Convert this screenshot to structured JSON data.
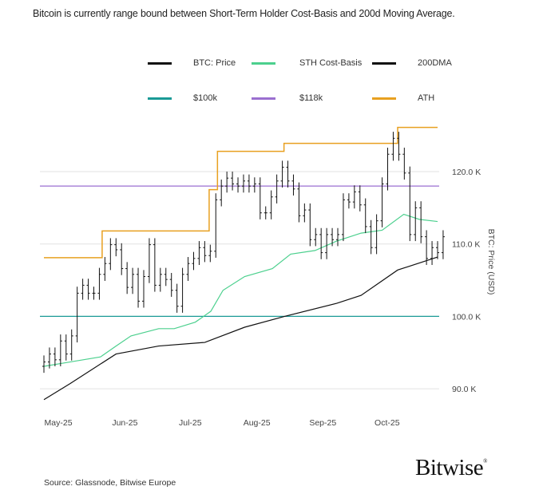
{
  "chart_data": {
    "type": "line",
    "title": "Bitcoin is currently range bound between Short-Term Holder Cost-Basis and 200d Moving Average.",
    "ylabel": "BTC: Price (USD)",
    "xlabel": "",
    "ylim": [
      86,
      128
    ],
    "y_ticks": [
      {
        "value": 90,
        "label": "90.0 K"
      },
      {
        "value": 100,
        "label": "100.0 K"
      },
      {
        "value": 110,
        "label": "110.0 K"
      },
      {
        "value": 120,
        "label": "120.0 K"
      }
    ],
    "x_ticks": [
      {
        "index": 2.6,
        "label": "May-25"
      },
      {
        "index": 14.6,
        "label": "Jun-25"
      },
      {
        "index": 26.4,
        "label": "Jul-25"
      },
      {
        "index": 38.4,
        "label": "Aug-25"
      },
      {
        "index": 50.3,
        "label": "Sep-25"
      },
      {
        "index": 61.9,
        "label": "Oct-25"
      }
    ],
    "grid": "horizontal",
    "legend_placement": "top",
    "series": [
      {
        "name": "BTC: Price",
        "color": "#111111",
        "style": "ohlc-bars",
        "values": [
          93.7,
          94.8,
          94,
          96.6,
          94.8,
          97.3,
          103.2,
          104.3,
          103.2,
          103.2,
          105.8,
          107.3,
          109.9,
          109.2,
          106.6,
          104,
          105.8,
          102.1,
          105.5,
          109.9,
          104.3,
          105.8,
          105.1,
          103.6,
          101.4,
          105.8,
          107.3,
          108,
          109.5,
          108.4,
          109,
          116.1,
          118,
          119.1,
          118.3,
          118,
          118.7,
          118,
          118.3,
          114.3,
          114.3,
          116.5,
          118.7,
          120.6,
          118.7,
          117.6,
          113.9,
          114.7,
          110.6,
          111.3,
          108.8,
          111.3,
          110.6,
          111.3,
          116.1,
          115.8,
          117.2,
          115.4,
          112.4,
          109.5,
          113.2,
          118.3,
          122.4,
          124.6,
          122.4,
          119.8,
          111.3,
          115,
          111,
          108,
          109.5,
          108.8,
          111
        ]
      },
      {
        "name": "STH Cost-Basis",
        "color": "#4cd08e",
        "points": [
          [
            0,
            93.1
          ],
          [
            4.7,
            93.7
          ],
          [
            10.2,
            94.4
          ],
          [
            13,
            95.9
          ],
          [
            15.7,
            97.3
          ],
          [
            20.7,
            98.3
          ],
          [
            23.5,
            98.3
          ],
          [
            27.3,
            99.2
          ],
          [
            30.1,
            100.7
          ],
          [
            32.3,
            103.6
          ],
          [
            36.2,
            105.5
          ],
          [
            41.2,
            106.6
          ],
          [
            44.5,
            108.6
          ],
          [
            48.9,
            109.1
          ],
          [
            52.8,
            110.4
          ],
          [
            57.2,
            111.5
          ],
          [
            61,
            111.9
          ],
          [
            64.9,
            114.1
          ],
          [
            67.7,
            113.4
          ],
          [
            71,
            113.1
          ]
        ]
      },
      {
        "name": "200DMA",
        "color": "#111111",
        "points": [
          [
            0,
            88.5
          ],
          [
            4.7,
            90.7
          ],
          [
            13,
            94.8
          ],
          [
            20.7,
            95.9
          ],
          [
            29,
            96.4
          ],
          [
            36.2,
            98.5
          ],
          [
            43.4,
            100
          ],
          [
            52.8,
            101.8
          ],
          [
            57.2,
            102.9
          ],
          [
            63.8,
            106.4
          ],
          [
            71,
            108.2
          ]
        ]
      },
      {
        "name": "$100k",
        "color": "#1a9a96",
        "value": 100
      },
      {
        "name": "$118k",
        "color": "#9b6fd0",
        "value": 118
      },
      {
        "name": "ATH",
        "color": "#e8a020",
        "style": "step",
        "points": [
          [
            0,
            108.1
          ],
          [
            10.5,
            111.8
          ],
          [
            29.8,
            117.5
          ],
          [
            31.3,
            122.8
          ],
          [
            43.3,
            123.9
          ],
          [
            63.8,
            126.1
          ],
          [
            71,
            126.1
          ]
        ]
      }
    ]
  },
  "legend": [
    {
      "label": "BTC: Price",
      "color": "#111111"
    },
    {
      "label": "STH Cost-Basis",
      "color": "#4cd08e"
    },
    {
      "label": "200DMA",
      "color": "#111111"
    },
    {
      "label": "$100k",
      "color": "#1a9a96"
    },
    {
      "label": "$118k",
      "color": "#9b6fd0"
    },
    {
      "label": "ATH",
      "color": "#e8a020"
    }
  ],
  "source": "Source: Glassnode, Bitwise Europe",
  "logo": "Bitwise"
}
